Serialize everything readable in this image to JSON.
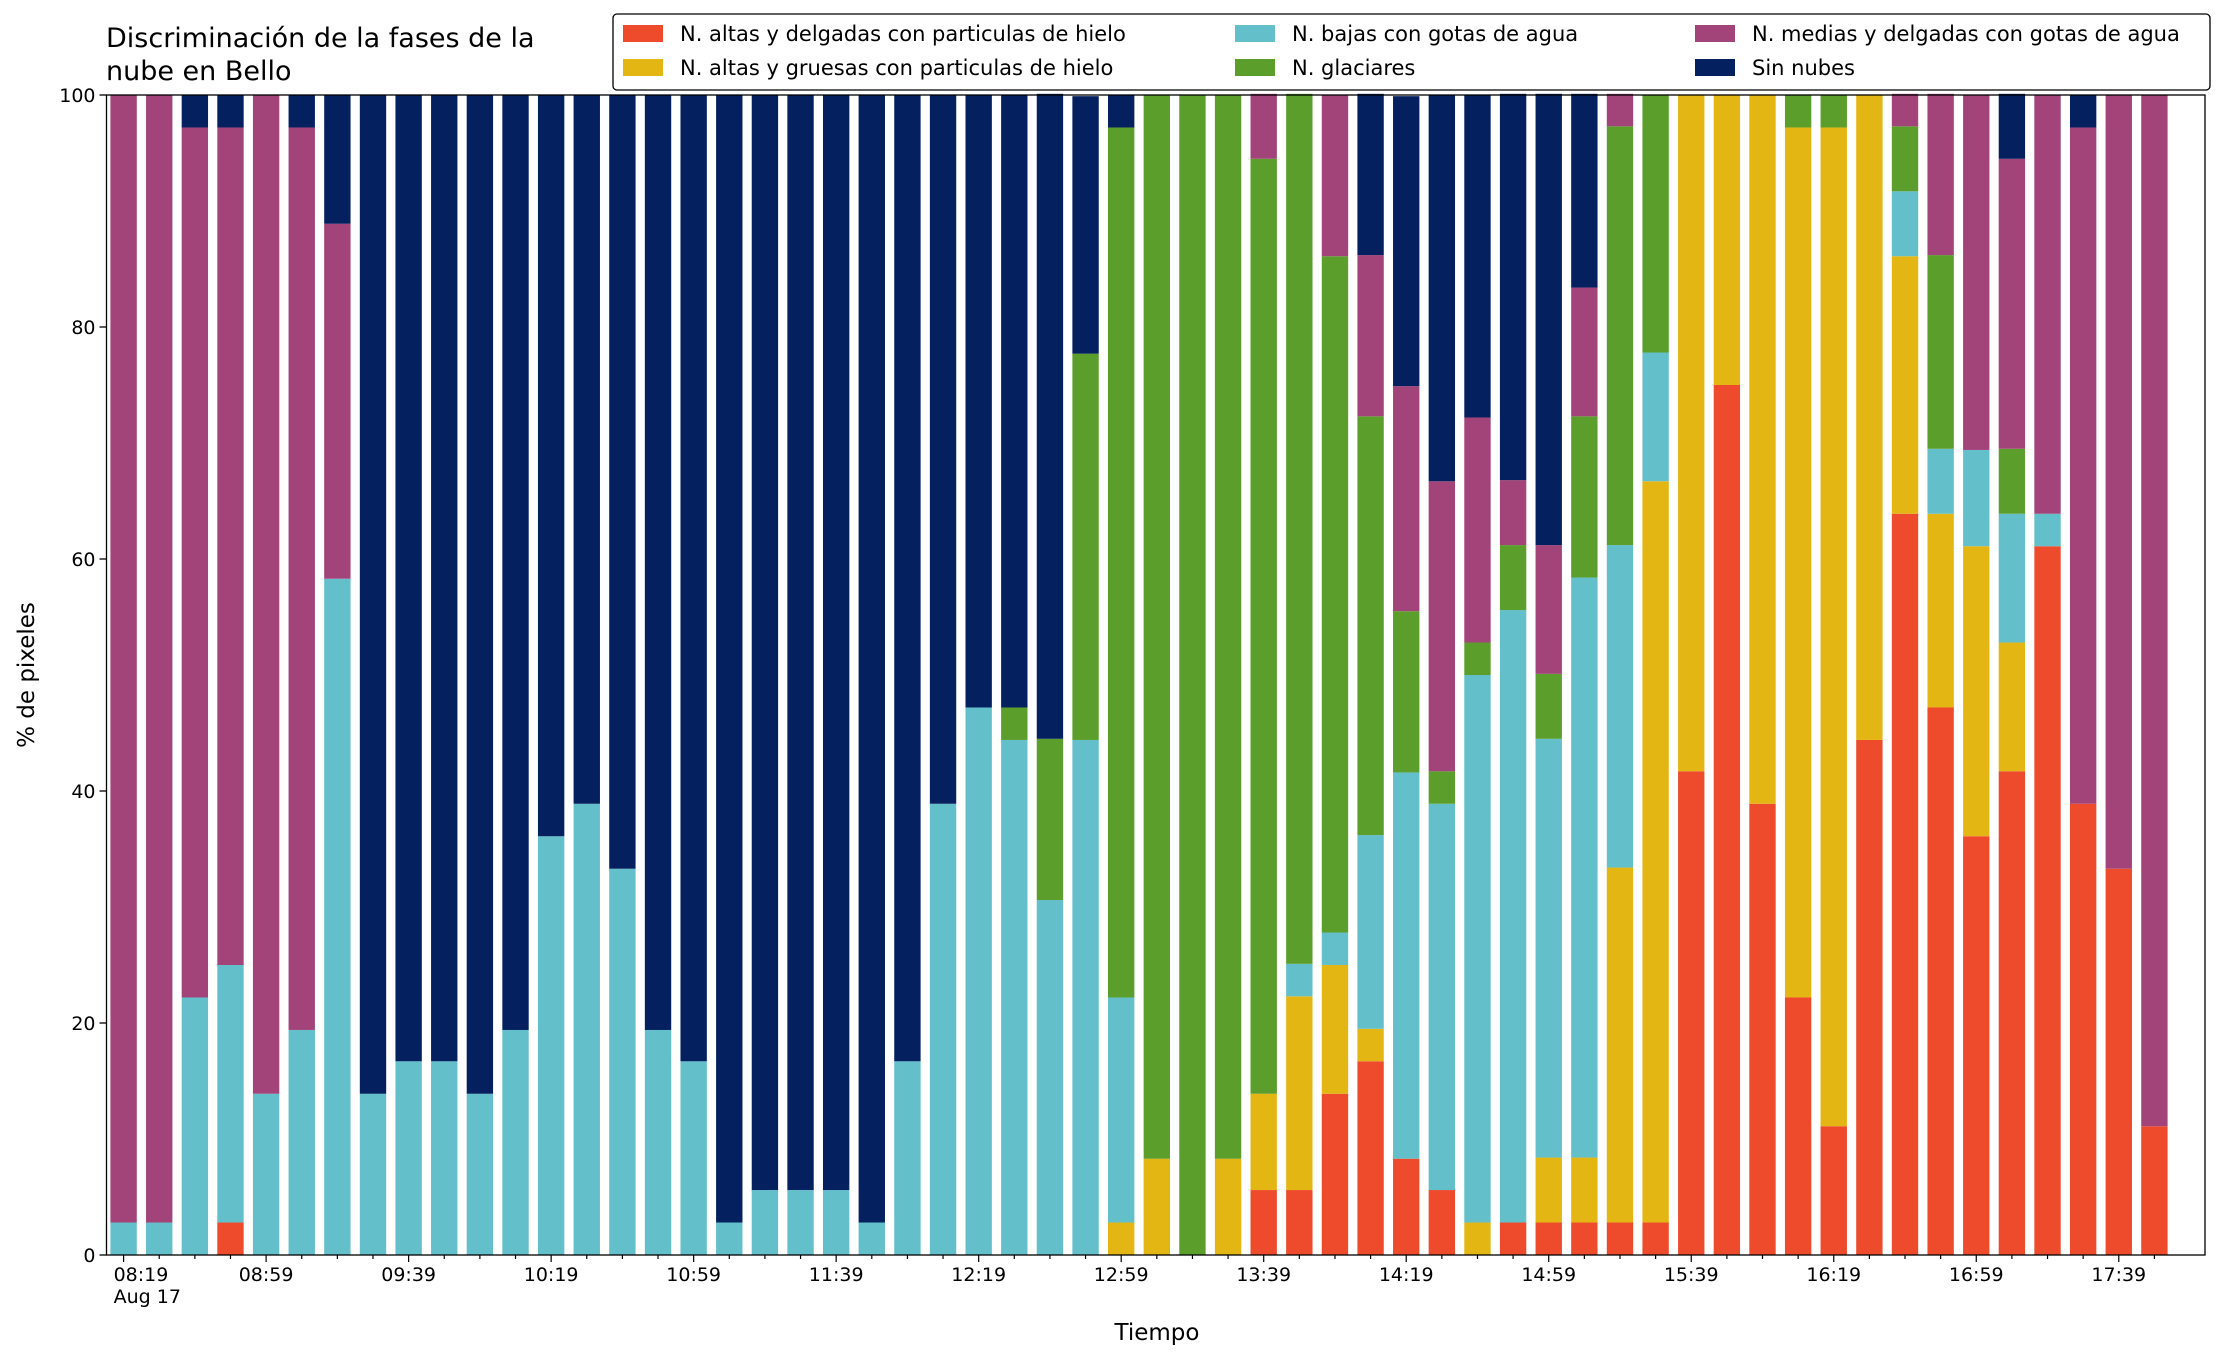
{
  "chart_data": {
    "type": "stacked_bar",
    "title": "Discriminación de la fases de la nube en Bello",
    "xlabel": "Tiempo",
    "ylabel": "% de pixeles",
    "x_date_label": "Aug 17",
    "categories": [
      "08:19",
      null,
      null,
      null,
      "08:59",
      null,
      null,
      null,
      "09:39",
      null,
      null,
      null,
      "10:19",
      null,
      null,
      null,
      "10:59",
      null,
      null,
      null,
      "11:39",
      null,
      null,
      null,
      "12:19",
      null,
      null,
      null,
      "12:59",
      null,
      null,
      null,
      "13:39",
      null,
      null,
      null,
      "14:19",
      null,
      null,
      null,
      "14:59",
      null,
      null,
      null,
      "15:39",
      null,
      null,
      null,
      "16:19",
      null,
      null,
      null,
      "16:59",
      null,
      null,
      null,
      "17:39",
      null
    ],
    "ylim": [
      0,
      100
    ],
    "yticks": [
      0,
      20,
      40,
      60,
      80,
      100
    ],
    "series": [
      {
        "name": "N. altas y delgadas con particulas de hielo",
        "color": "#ee4a2c",
        "values": [
          0,
          0,
          0,
          2.8,
          0,
          0,
          0,
          0,
          0,
          0,
          0,
          0,
          0,
          0,
          0,
          0,
          0,
          0,
          0,
          0,
          0,
          0,
          0,
          0,
          0,
          0,
          0,
          0,
          0,
          0,
          0,
          0,
          5.6,
          5.6,
          13.9,
          16.7,
          8.3,
          5.6,
          0,
          2.8,
          2.8,
          2.8,
          2.8,
          2.8,
          41.7,
          75,
          38.9,
          22.2,
          11.1,
          44.4,
          63.9,
          47.2,
          36.1,
          41.7,
          61.1,
          38.9,
          33.3,
          11.1
        ]
      },
      {
        "name": "N. altas y gruesas con particulas de hielo",
        "color": "#e4b614",
        "values": [
          0,
          0,
          0,
          0,
          0,
          0,
          0,
          0,
          0,
          0,
          0,
          0,
          0,
          0,
          0,
          0,
          0,
          0,
          0,
          0,
          0,
          0,
          0,
          0,
          0,
          0,
          0,
          0,
          2.8,
          8.3,
          0,
          8.3,
          8.3,
          16.7,
          11.1,
          2.8,
          0,
          0,
          2.8,
          0,
          5.6,
          5.6,
          30.6,
          63.9,
          58.3,
          25,
          61.1,
          75,
          86.1,
          55.6,
          22.2,
          16.7,
          25,
          11.1,
          0,
          0,
          0,
          0
        ]
      },
      {
        "name": "N. bajas con gotas de agua",
        "color": "#63bfca",
        "values": [
          2.8,
          2.8,
          22.2,
          22.2,
          13.9,
          19.4,
          58.3,
          13.9,
          16.7,
          16.7,
          13.9,
          19.4,
          36.1,
          38.9,
          33.3,
          19.4,
          16.7,
          2.8,
          5.6,
          5.6,
          5.6,
          2.8,
          16.7,
          38.9,
          47.2,
          44.4,
          30.6,
          44.4,
          19.4,
          0,
          0,
          0,
          0,
          2.8,
          2.8,
          16.7,
          33.3,
          33.3,
          47.2,
          52.8,
          36.1,
          50,
          27.8,
          11.1,
          0,
          0,
          0,
          0,
          0,
          0,
          5.6,
          5.6,
          8.3,
          11.1,
          2.8,
          0,
          0,
          0
        ]
      },
      {
        "name": "N. glaciares",
        "color": "#5c9e2c",
        "values": [
          0,
          0,
          0,
          0,
          0,
          0,
          0,
          0,
          0,
          0,
          0,
          0,
          0,
          0,
          0,
          0,
          0,
          0,
          0,
          0,
          0,
          0,
          0,
          0,
          0,
          2.8,
          13.9,
          33.3,
          75,
          91.7,
          100,
          91.7,
          80.6,
          75,
          58.3,
          36.1,
          13.9,
          2.8,
          2.8,
          5.6,
          5.6,
          13.9,
          36.1,
          22.2,
          0,
          0,
          0,
          2.8,
          2.8,
          0,
          5.6,
          16.7,
          0,
          5.6,
          0,
          0,
          0,
          0
        ]
      },
      {
        "name": "N. medias y delgadas con gotas de agua",
        "color": "#a2447a",
        "values": [
          97.2,
          97.2,
          75,
          72.2,
          86.1,
          77.8,
          30.6,
          0,
          0,
          0,
          0,
          0,
          0,
          0,
          0,
          0,
          0,
          0,
          0,
          0,
          0,
          0,
          0,
          0,
          0,
          0,
          0,
          0,
          0,
          0,
          0,
          0,
          5.6,
          0,
          13.9,
          13.9,
          19.4,
          25,
          19.4,
          5.6,
          11.1,
          11.1,
          2.8,
          0,
          0,
          0,
          0,
          0,
          0,
          0,
          2.8,
          13.9,
          30.6,
          25,
          36.1,
          58.3,
          66.7,
          88.9
        ]
      },
      {
        "name": "Sin nubes",
        "color": "#04205e",
        "values": [
          0,
          0,
          2.8,
          2.8,
          0,
          2.8,
          11.1,
          86.1,
          83.3,
          83.3,
          86.1,
          80.6,
          63.9,
          61.1,
          66.7,
          80.6,
          83.3,
          97.2,
          94.4,
          94.4,
          94.4,
          97.2,
          83.3,
          61.1,
          52.8,
          52.8,
          55.6,
          22.2,
          2.8,
          0,
          0,
          0,
          0,
          0,
          0,
          13.9,
          25,
          33.3,
          27.8,
          33.3,
          38.9,
          16.7,
          0,
          0,
          0,
          0,
          0,
          0,
          0,
          0,
          0,
          0,
          0,
          5.6,
          0,
          2.8,
          0,
          0
        ]
      }
    ]
  }
}
